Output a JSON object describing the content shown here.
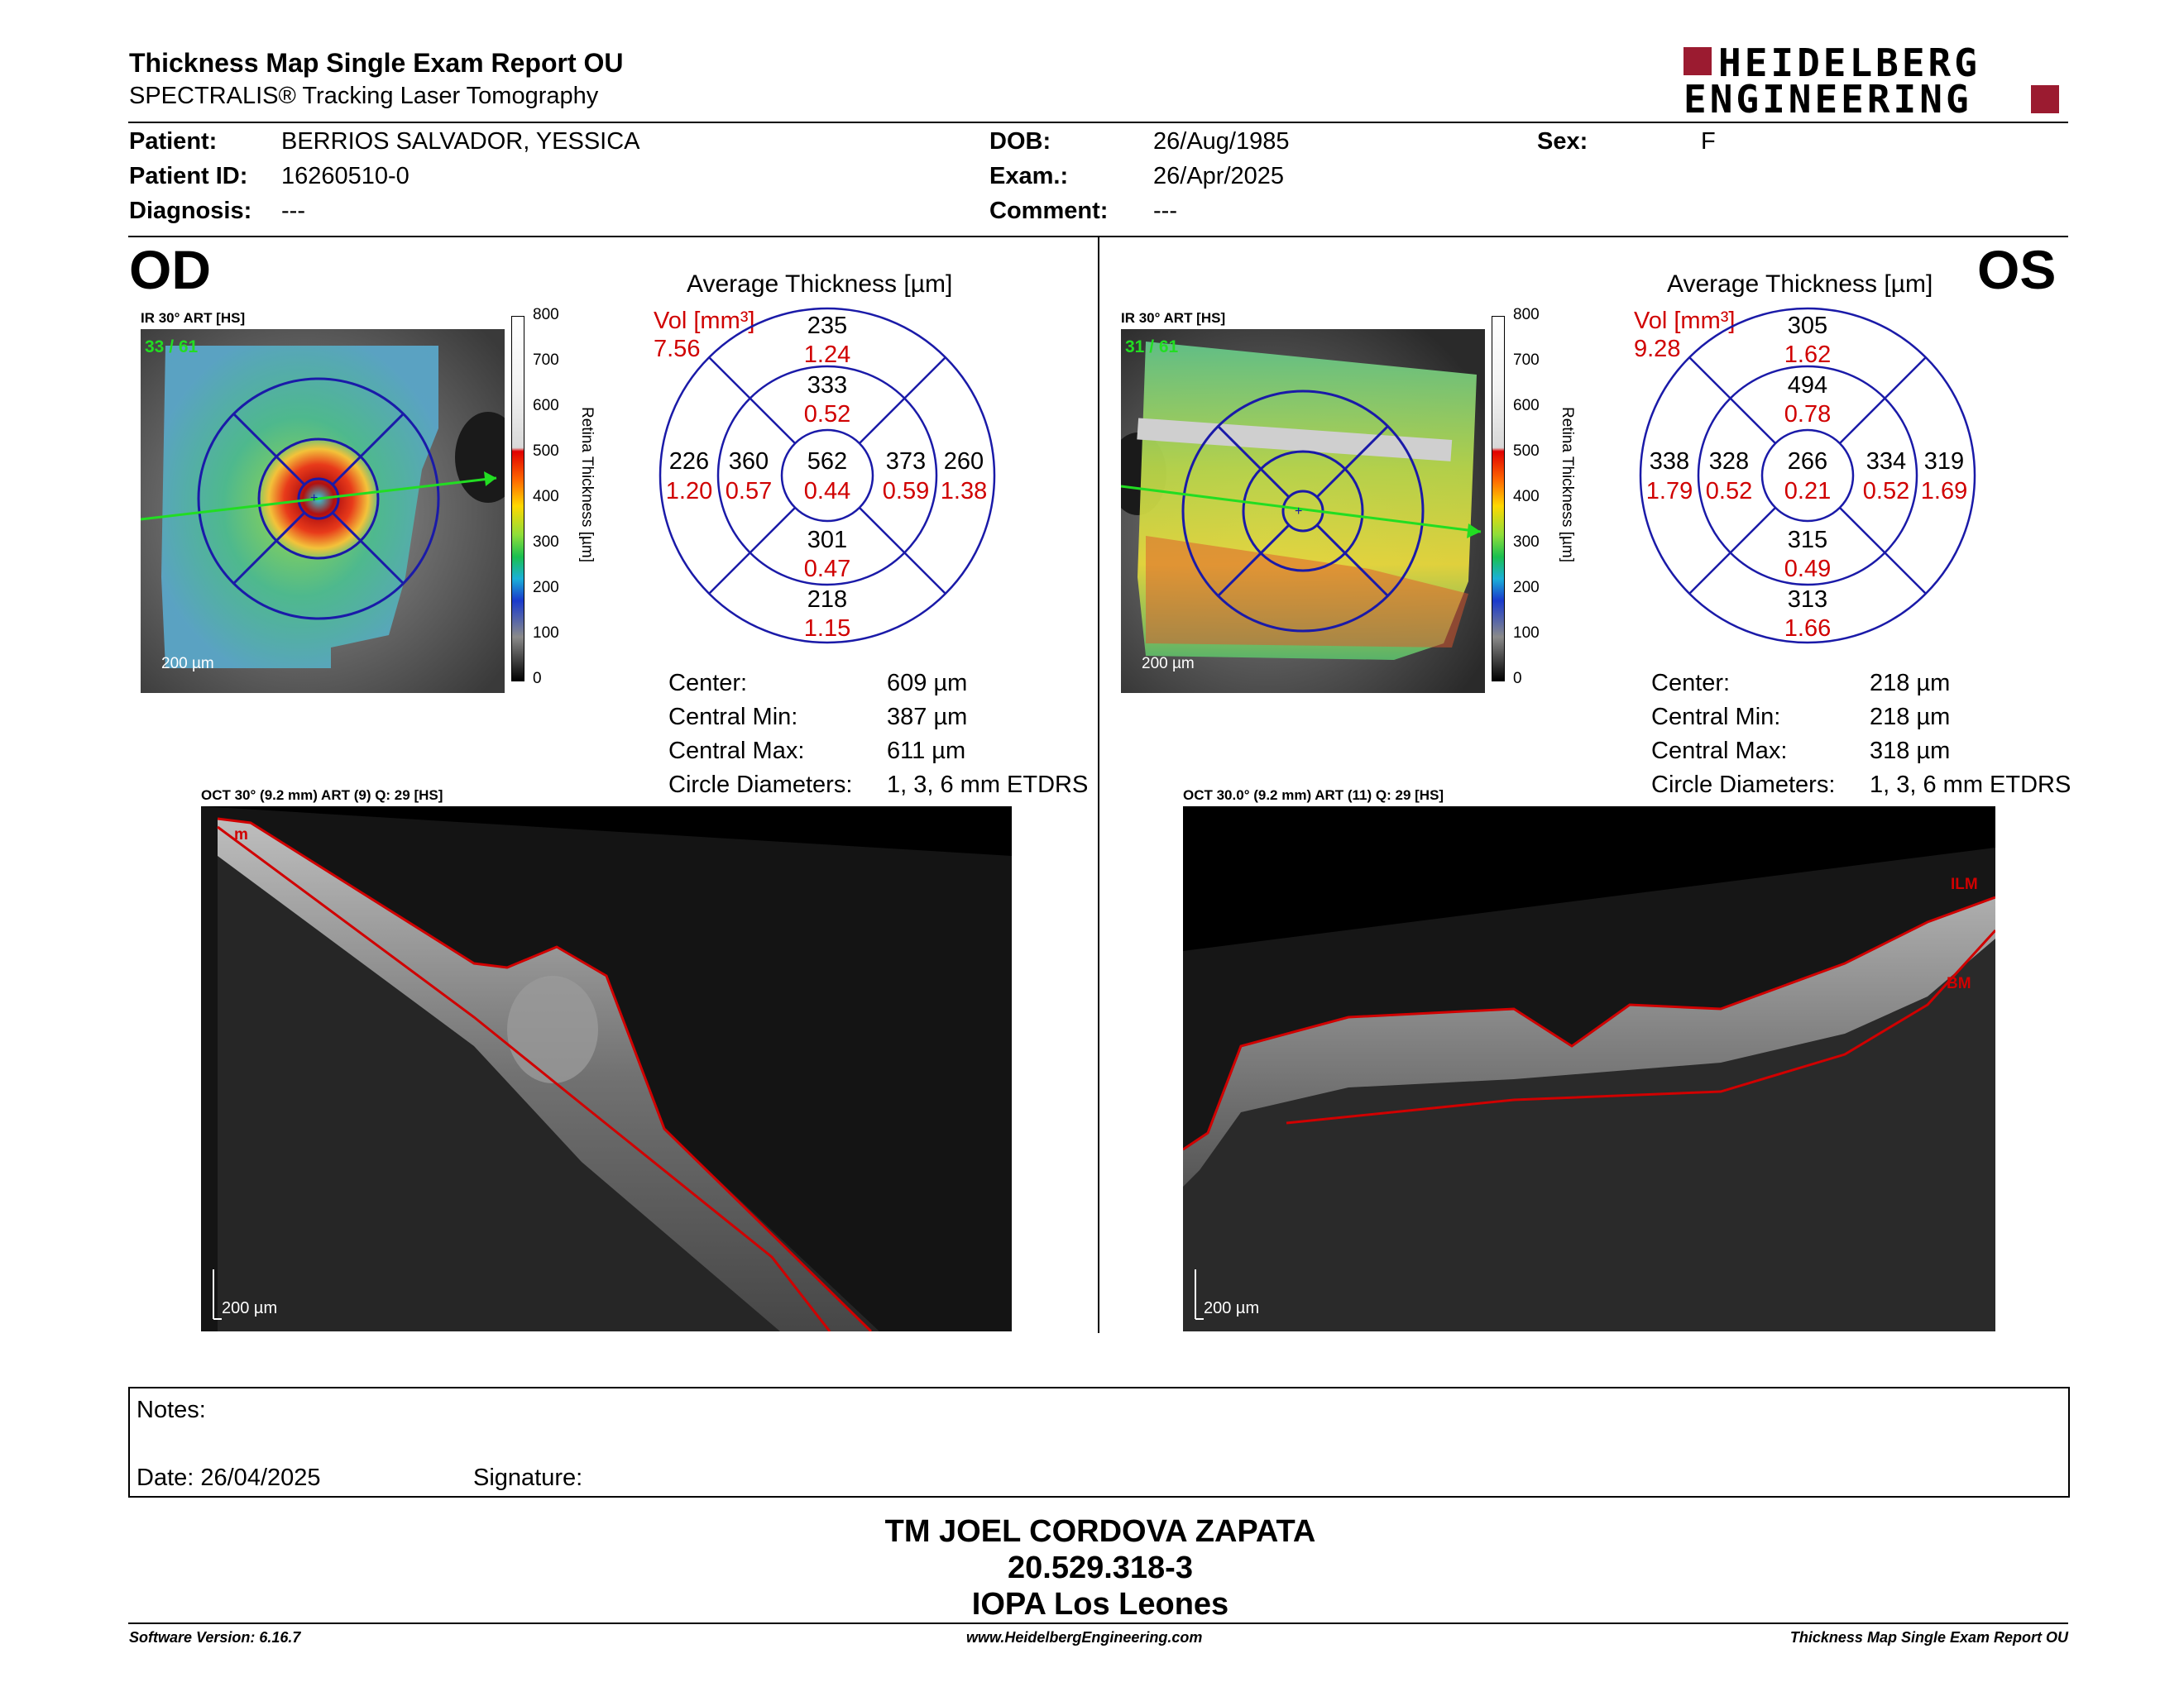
{
  "report": {
    "title": "Thickness Map Single Exam Report OU",
    "subtitle": "SPECTRALIS® Tracking Laser Tomography",
    "brand_line1": "HEIDELBERG",
    "brand_line2": "ENGINEERING"
  },
  "patient": {
    "patient_label": "Patient:",
    "patient_value": "BERRIOS SALVADOR, YESSICA",
    "id_label": "Patient ID:",
    "id_value": "16260510-0",
    "diagnosis_label": "Diagnosis:",
    "diagnosis_value": "---",
    "dob_label": "DOB:",
    "dob_value": "26/Aug/1985",
    "exam_label": "Exam.:",
    "exam_value": "26/Apr/2025",
    "comment_label": "Comment:",
    "comment_value": "---",
    "sex_label": "Sex:",
    "sex_value": "F"
  },
  "scale": {
    "ticks": [
      "800",
      "700",
      "600",
      "500",
      "400",
      "300",
      "200",
      "100",
      "0"
    ],
    "label": "Retina  Thickness [µm]"
  },
  "od": {
    "eye": "OD",
    "ir_label": "IR 30° ART [HS]",
    "frame": "33 / 61",
    "scalebar": "200 µm",
    "avg_title": "Average Thickness [µm]",
    "vol_label": "Vol [mm³]",
    "vol_value": "7.56",
    "center": {
      "t": "562",
      "v": "0.44"
    },
    "inner_sup": {
      "t": "333",
      "v": "0.52"
    },
    "inner_inf": {
      "t": "301",
      "v": "0.47"
    },
    "inner_left": {
      "t": "360",
      "v": "0.57"
    },
    "inner_right": {
      "t": "373",
      "v": "0.59"
    },
    "outer_sup": {
      "t": "235",
      "v": "1.24"
    },
    "outer_inf": {
      "t": "218",
      "v": "1.15"
    },
    "outer_left": {
      "t": "226",
      "v": "1.20"
    },
    "outer_right": {
      "t": "260",
      "v": "1.38"
    },
    "stats": [
      {
        "label": "Center:",
        "value": "609 µm"
      },
      {
        "label": "Central Min:",
        "value": "387 µm"
      },
      {
        "label": "Central Max:",
        "value": "611 µm"
      },
      {
        "label": "Circle Diameters:",
        "value": "1, 3, 6 mm ETDRS"
      }
    ],
    "oct_label": "OCT 30° (9.2 mm) ART (9) Q: 29 [HS]",
    "oct_scalebar": "200 µm",
    "oct_marker": "m"
  },
  "os": {
    "eye": "OS",
    "ir_label": "IR 30° ART [HS]",
    "frame": "31 / 61",
    "scalebar": "200 µm",
    "avg_title": "Average Thickness [µm]",
    "vol_label": "Vol [mm³]",
    "vol_value": "9.28",
    "center": {
      "t": "266",
      "v": "0.21"
    },
    "inner_sup": {
      "t": "494",
      "v": "0.78"
    },
    "inner_inf": {
      "t": "315",
      "v": "0.49"
    },
    "inner_left": {
      "t": "328",
      "v": "0.52"
    },
    "inner_right": {
      "t": "334",
      "v": "0.52"
    },
    "outer_sup": {
      "t": "305",
      "v": "1.62"
    },
    "outer_inf": {
      "t": "313",
      "v": "1.66"
    },
    "outer_left": {
      "t": "338",
      "v": "1.79"
    },
    "outer_right": {
      "t": "319",
      "v": "1.69"
    },
    "stats": [
      {
        "label": "Center:",
        "value": "218 µm"
      },
      {
        "label": "Central Min:",
        "value": "218 µm"
      },
      {
        "label": "Central Max:",
        "value": "318 µm"
      },
      {
        "label": "Circle Diameters:",
        "value": "1, 3, 6 mm ETDRS"
      }
    ],
    "oct_label": "OCT 30.0° (9.2 mm) ART (11) Q: 29 [HS]",
    "oct_scalebar": "200 µm",
    "oct_ilm": "ILM",
    "oct_bm": "BM"
  },
  "notes": {
    "notes_label": "Notes:",
    "date_label": "Date: 26/04/2025",
    "signature_label": "Signature:"
  },
  "signature_block": {
    "line1": "TM JOEL CORDOVA ZAPATA",
    "line2": "20.529.318-3",
    "line3": "IOPA Los Leones"
  },
  "footer": {
    "software": "Software Version: 6.16.7",
    "website": "www.HeidelbergEngineering.com",
    "report_name": "Thickness Map Single Exam Report OU"
  },
  "colors": {
    "brand": "#9b1b30",
    "accent_red": "#d00000",
    "grid_blue": "#1a1aa8"
  }
}
